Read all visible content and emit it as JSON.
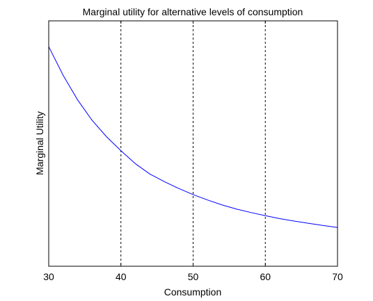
{
  "chart_data": {
    "type": "line",
    "title": "Marginal utility for alternative levels of consumption",
    "xlabel": "Consumption",
    "ylabel": "Marginal Utility",
    "xlim": [
      30,
      70
    ],
    "ylim": [
      0,
      1
    ],
    "x_ticks": [
      "30",
      "40",
      "50",
      "60",
      "70"
    ],
    "y_ticks_shown": false,
    "grid": false,
    "reference_lines": [
      40,
      50,
      60
    ],
    "reference_line_style": "dashed",
    "series": [
      {
        "color": "#0000ff",
        "x": [
          30,
          32,
          34,
          36,
          38,
          40,
          42,
          44,
          46,
          48,
          50,
          52,
          54,
          56,
          58,
          60,
          62,
          64,
          66,
          68,
          70
        ],
        "values": [
          0.895,
          0.778,
          0.678,
          0.595,
          0.528,
          0.471,
          0.418,
          0.376,
          0.345,
          0.317,
          0.292,
          0.27,
          0.25,
          0.233,
          0.219,
          0.206,
          0.194,
          0.184,
          0.175,
          0.166,
          0.158
        ]
      }
    ]
  }
}
